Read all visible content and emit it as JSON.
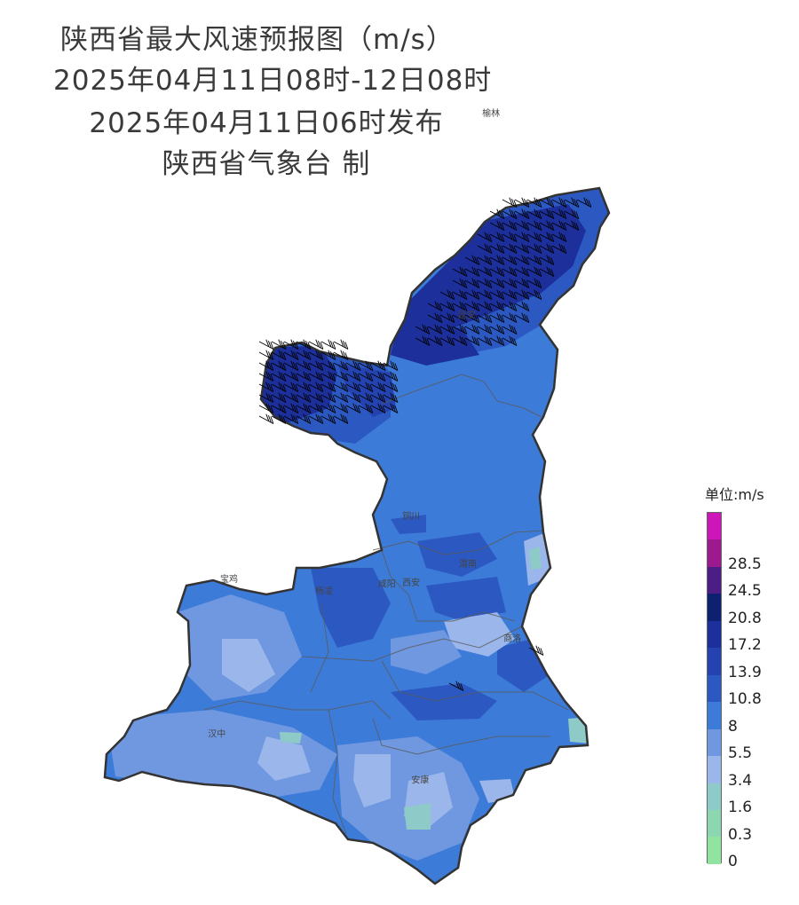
{
  "title": {
    "line1": "陕西省最大风速预报图（m/s）",
    "line2": "2025年04月11日08时-12日08时",
    "line3": "2025年04月11日06时发布",
    "line4": "陕西省气象台 制"
  },
  "legend": {
    "unit": "单位:m/s",
    "levels": [
      {
        "label": "0",
        "color": "#90e4a0"
      },
      {
        "label": "0.3",
        "color": "#8cd6b0"
      },
      {
        "label": "1.6",
        "color": "#8ecac8"
      },
      {
        "label": "3.4",
        "color": "#9bb6ea"
      },
      {
        "label": "5.5",
        "color": "#6f98e0"
      },
      {
        "label": "8",
        "color": "#3d7bd8"
      },
      {
        "label": "10.8",
        "color": "#2c58c2"
      },
      {
        "label": "13.9",
        "color": "#2443b0"
      },
      {
        "label": "17.2",
        "color": "#1c2f9a"
      },
      {
        "label": "20.8",
        "color": "#0e2070"
      },
      {
        "label": "24.5",
        "color": "#4d1d86"
      },
      {
        "label": "28.5",
        "color": "#9d1a8e"
      },
      {
        "label": "",
        "color": "#cc16b8"
      }
    ]
  },
  "cities": [
    {
      "name": "榆林",
      "lon": 109.73,
      "lat": 38.29
    },
    {
      "name": "延安",
      "lon": 109.49,
      "lat": 36.59
    },
    {
      "name": "铜川",
      "lon": 108.94,
      "lat": 34.9
    },
    {
      "name": "渭南",
      "lon": 109.5,
      "lat": 34.5
    },
    {
      "name": "咸阳",
      "lon": 108.7,
      "lat": 34.33
    },
    {
      "name": "宝鸡",
      "lon": 107.14,
      "lat": 34.37
    },
    {
      "name": "杨凌",
      "lon": 108.08,
      "lat": 34.27
    },
    {
      "name": "西安",
      "lon": 108.94,
      "lat": 34.34
    },
    {
      "name": "商洛",
      "lon": 109.94,
      "lat": 33.87
    },
    {
      "name": "汉中",
      "lon": 107.02,
      "lat": 33.07
    },
    {
      "name": "安康",
      "lon": 109.03,
      "lat": 32.68
    }
  ]
}
